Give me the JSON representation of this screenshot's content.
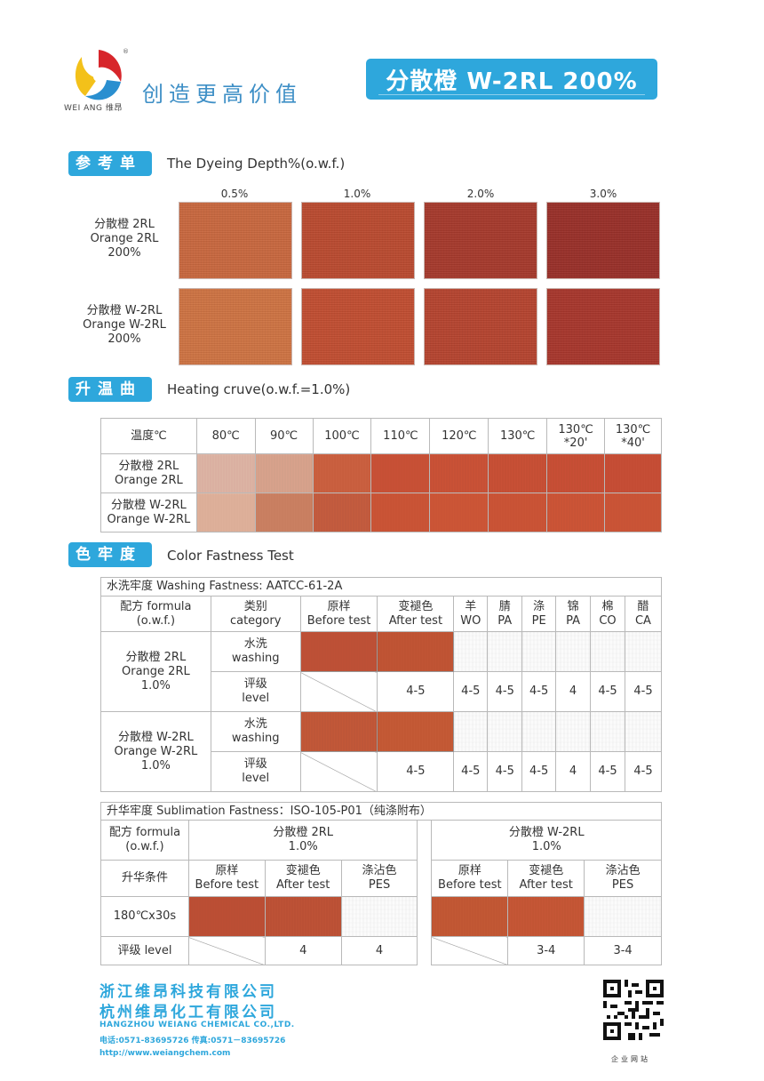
{
  "header": {
    "logo_caption": "WEI ANG 维昂",
    "slogan": "创造更高价值",
    "product_title": "分散橙 W-2RL 200%"
  },
  "colors": {
    "accent": "#2ea7dc",
    "slogan": "#3e8fc6"
  },
  "dyeing_depth": {
    "tag": "参考单色",
    "title": "The Dyeing Depth%(o.w.f.)",
    "depths": [
      "0.5%",
      "1.0%",
      "2.0%",
      "3.0%"
    ],
    "rows": [
      {
        "l1": "分散橙 2RL",
        "l2": "Orange 2RL",
        "l3": "200%",
        "colors": [
          "#c9683f",
          "#bb4b30",
          "#a73a2c",
          "#9a3029"
        ]
      },
      {
        "l1": "分散橙 W-2RL",
        "l2": "Orange W-2RL",
        "l3": "200%",
        "colors": [
          "#cf7443",
          "#c24e31",
          "#b6442f",
          "#a8372c"
        ]
      }
    ]
  },
  "heating": {
    "tag": "升温曲线",
    "title": "Heating cruve(o.w.f.=1.0%)",
    "header_label": "温度℃",
    "temps": [
      "80℃",
      "90℃",
      "100℃",
      "110℃",
      "120℃",
      "130℃",
      "130℃\n*20'",
      "130℃\n*40'"
    ],
    "rows": [
      {
        "l1": "分散橙 2RL",
        "l2": "Orange 2RL",
        "colors": [
          "#e2b6a5",
          "#dca48d",
          "#cf5e3c",
          "#cc4e32",
          "#cd4f33",
          "#cb4d31",
          "#cb4c31",
          "#ca4b31"
        ]
      },
      {
        "l1": "分散橙 W-2RL",
        "l2": "Orange W-2RL",
        "colors": [
          "#e4b39c",
          "#cf8060",
          "#c75a3b",
          "#cf5232",
          "#d15333",
          "#cf5132",
          "#d05233",
          "#cf5233"
        ]
      }
    ]
  },
  "fastness": {
    "tag": "色牢度",
    "title": "Color Fastness Test",
    "washing": {
      "caption": "水洗牢度 Washing Fastness: AATCC-61-2A",
      "h_formula": [
        "配方 formula",
        "(o.w.f.)"
      ],
      "h_category": [
        "类别",
        "category"
      ],
      "h_before": [
        "原样",
        "Before test"
      ],
      "h_after": [
        "变褪色",
        "After test"
      ],
      "fibers": [
        [
          "羊",
          "WO"
        ],
        [
          "腈",
          "PA"
        ],
        [
          "涤",
          "PE"
        ],
        [
          "锦",
          "PA"
        ],
        [
          "棉",
          "CO"
        ],
        [
          "醋",
          "CA"
        ]
      ],
      "cat_washing": [
        "水洗",
        "washing"
      ],
      "cat_level": [
        "评级",
        "level"
      ],
      "groups": [
        {
          "l1": "分散橙 2RL",
          "l2": "Orange 2RL",
          "l3": "1.0%",
          "before": "#c24e33",
          "after": "#c4522f",
          "ratings": [
            "4-5",
            "4-5",
            "4-5",
            "4-5",
            "4",
            "4-5",
            "4-5"
          ]
        },
        {
          "l1": "分散橙 W-2RL",
          "l2": "Orange W-2RL",
          "l3": "1.0%",
          "before": "#c55535",
          "after": "#c85731",
          "ratings": [
            "4-5",
            "4-5",
            "4-5",
            "4-5",
            "4",
            "4-5",
            "4-5"
          ]
        }
      ]
    },
    "sublimation": {
      "caption": "升华牢度 Sublimation Fastness：ISO-105-P01（纯涤附布）",
      "h_formula": [
        "配方 formula",
        "(o.w.f.)"
      ],
      "products": [
        {
          "l1": "分散橙 2RL",
          "l2": "1.0%"
        },
        {
          "l1": "分散橙 W-2RL",
          "l2": "1.0%"
        }
      ],
      "condition_label": "升华条件",
      "h_before": [
        "原样",
        "Before test"
      ],
      "h_after": [
        "变褪色",
        "After test"
      ],
      "h_stain": [
        "涤沾色",
        "PES"
      ],
      "condition": "180℃x30s",
      "level_label": "评级 level",
      "left": {
        "before": "#c04c30",
        "after": "#c14f32",
        "r_after": "4",
        "r_stain": "4"
      },
      "right": {
        "before": "#c6552f",
        "after": "#c95431",
        "r_after": "3-4",
        "r_stain": "3-4"
      }
    }
  },
  "footer": {
    "company1": "浙江维昂科技有限公司",
    "company2": "杭州维昂化工有限公司",
    "company_en": "HANGZHOU WEIANG CHEMICAL CO.,LTD.",
    "tel": "电话:0571-83695726 传真:0571－83695726",
    "url": "http://www.weiangchem.com",
    "qr_caption": "企业网站"
  }
}
